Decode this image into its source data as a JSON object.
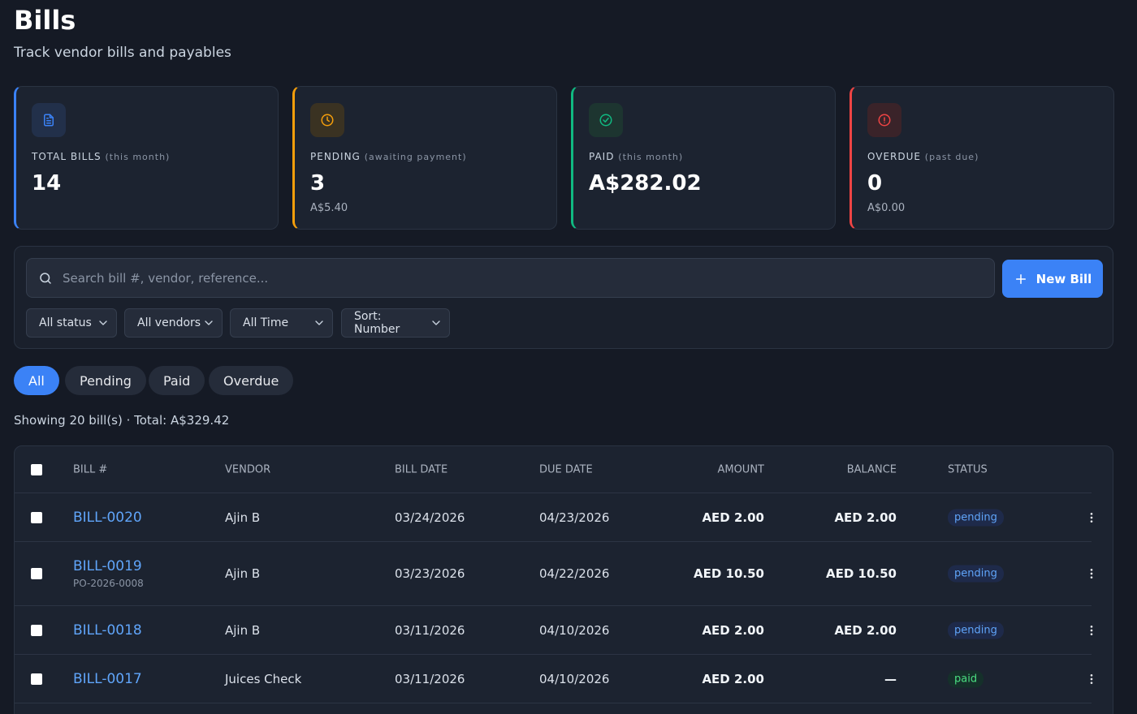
{
  "header": {
    "title": "Bills",
    "subtitle": "Track vendor bills and payables"
  },
  "stats": [
    {
      "label": "TOTAL BILLS",
      "note": "(this month)",
      "value": "14"
    },
    {
      "label": "PENDING",
      "note": "(awaiting payment)",
      "value": "3",
      "sub": "A$5.40"
    },
    {
      "label": "PAID",
      "note": "(this month)",
      "value": "A$282.02"
    },
    {
      "label": "OVERDUE",
      "note": "(past due)",
      "value": "0",
      "sub": "A$0.00"
    }
  ],
  "search": {
    "placeholder": "Search bill #, vendor, reference...",
    "new_button": "New Bill"
  },
  "filters": [
    "All status",
    "All vendors",
    "All Time",
    "Sort: Number"
  ],
  "tabs": [
    "All",
    "Pending",
    "Paid",
    "Overdue"
  ],
  "summary": "Showing 20 bill(s) · Total: A$329.42",
  "table": {
    "columns": [
      "BILL #",
      "VENDOR",
      "BILL DATE",
      "DUE DATE",
      "AMOUNT",
      "BALANCE",
      "STATUS"
    ],
    "rows": [
      {
        "bill": "BILL-0020",
        "vendor": "Ajin B",
        "bill_date": "03/24/2026",
        "due_date": "04/23/2026",
        "amount": "AED 2.00",
        "balance": "AED 2.00",
        "status": "pending"
      },
      {
        "bill": "BILL-0019",
        "reference": "PO-2026-0008",
        "vendor": "Ajin B",
        "bill_date": "03/23/2026",
        "due_date": "04/22/2026",
        "amount": "AED 10.50",
        "balance": "AED 10.50",
        "status": "pending"
      },
      {
        "bill": "BILL-0018",
        "vendor": "Ajin B",
        "bill_date": "03/11/2026",
        "due_date": "04/10/2026",
        "amount": "AED 2.00",
        "balance": "AED 2.00",
        "status": "pending"
      },
      {
        "bill": "BILL-0017",
        "vendor": "Juices Check",
        "bill_date": "03/11/2026",
        "due_date": "04/10/2026",
        "amount": "AED 2.00",
        "balance": "—",
        "status": "paid"
      }
    ]
  }
}
